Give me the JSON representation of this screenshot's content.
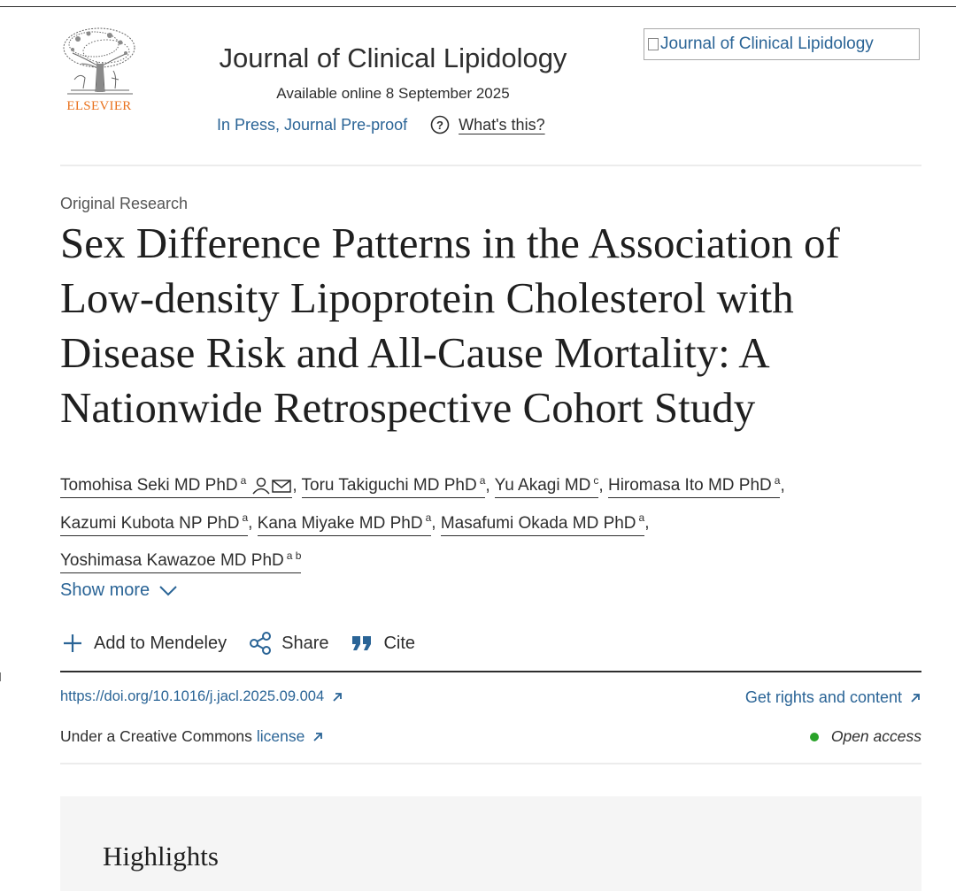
{
  "header": {
    "publisher": "ELSEVIER",
    "journal_name": "Journal of Clinical Lipidology",
    "available_online": "Available online 8 September 2025",
    "status_link": "In Press, Journal Pre-proof",
    "whats_this": "What's this?",
    "cover_image_alt": "Journal of Clinical Lipidology"
  },
  "article": {
    "type": "Original Research",
    "title": "Sex Difference Patterns in the Association of Low-density Lipoprotein Cholesterol with Disease Risk and All-Cause Mortality: A Nationwide Retrospective Cohort Study",
    "authors": [
      {
        "name": "Tomohisa Seki MD PhD",
        "sup": "a"
      },
      {
        "name": "Toru Takiguchi MD PhD",
        "sup": "a"
      },
      {
        "name": "Yu Akagi MD",
        "sup": "c"
      },
      {
        "name": "Hiromasa Ito MD PhD",
        "sup": "a"
      },
      {
        "name": "Kazumi Kubota NP PhD",
        "sup": "a"
      },
      {
        "name": "Kana Miyake MD PhD",
        "sup": "a"
      },
      {
        "name": "Masafumi Okada MD PhD",
        "sup": "a"
      },
      {
        "name": "Yoshimasa Kawazoe MD PhD",
        "sup": "a b"
      }
    ],
    "author_separator": ",",
    "show_more": "Show more"
  },
  "actions": {
    "mendeley": "Add to Mendeley",
    "share": "Share",
    "cite": "Cite"
  },
  "links": {
    "doi": "https://doi.org/10.1016/j.jacl.2025.09.004",
    "rights": "Get rights and content",
    "license_prefix": "Under a Creative Commons",
    "license_link": "license",
    "open_access": "Open access"
  },
  "highlights": {
    "title": "Highlights"
  },
  "colors": {
    "link": "#2a6496",
    "elsevier_orange": "#e9711c",
    "open_access_dot": "#29a329",
    "text": "#1f1f1f"
  },
  "icons": [
    "help-icon",
    "person-icon",
    "envelope-icon",
    "chevron-down-icon",
    "plus-icon",
    "share-icon",
    "quote-icon",
    "external-link-icon"
  ]
}
